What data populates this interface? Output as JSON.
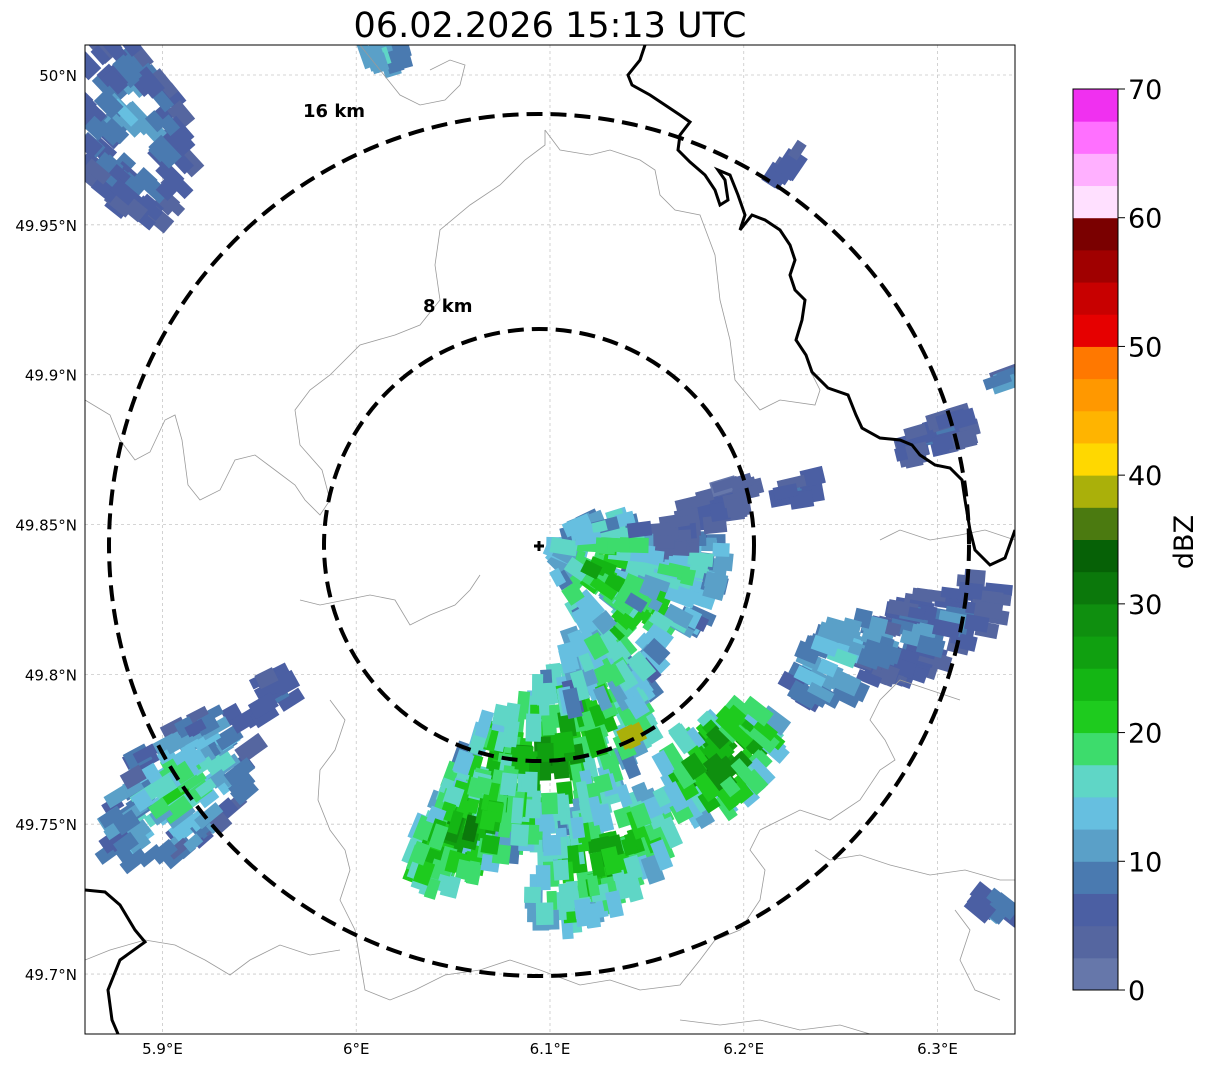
{
  "title": "06.02.2026 15:13 UTC",
  "map": {
    "lon_range": [
      5.86,
      6.34
    ],
    "lat_range": [
      49.68,
      50.01
    ],
    "lon_ticks": [
      {
        "v": 5.9,
        "label": "5.9°E"
      },
      {
        "v": 6.0,
        "label": "6°E"
      },
      {
        "v": 6.1,
        "label": "6.1°E"
      },
      {
        "v": 6.2,
        "label": "6.2°E"
      },
      {
        "v": 6.3,
        "label": "6.3°E"
      }
    ],
    "lat_ticks": [
      {
        "v": 49.7,
        "label": "49.7°N"
      },
      {
        "v": 49.75,
        "label": "49.75°N"
      },
      {
        "v": 49.8,
        "label": "49.8°N"
      },
      {
        "v": 49.85,
        "label": "49.85°N"
      },
      {
        "v": 49.9,
        "label": "49.9°N"
      },
      {
        "v": 49.95,
        "label": "49.95°N"
      },
      {
        "v": 50.0,
        "label": "50°N"
      }
    ],
    "gridlines": true,
    "radar_site": {
      "lon": 6.094,
      "lat": 49.844
    },
    "range_rings": [
      {
        "km": 8,
        "label": "8 km"
      },
      {
        "km": 16,
        "label": "16 km"
      }
    ]
  },
  "colorbar": {
    "label": "dBZ",
    "min": 0,
    "max": 70,
    "ticks": [
      0,
      10,
      20,
      30,
      40,
      50,
      60,
      70
    ],
    "colors": [
      "#6677aa",
      "#5566a0",
      "#4b5fa3",
      "#4a7ab0",
      "#5aa0c8",
      "#66bfe0",
      "#5fd6c6",
      "#3ddc6c",
      "#1ecb1e",
      "#14b614",
      "#10a010",
      "#0f8f0f",
      "#0b780b",
      "#066106",
      "#4b7a10",
      "#aab00a",
      "#ffd800",
      "#ffb400",
      "#ff9800",
      "#ff7800",
      "#e60000",
      "#c80000",
      "#a00000",
      "#7a0000",
      "#ffe0ff",
      "#ffb0ff",
      "#ff70ff",
      "#f030f0"
    ]
  },
  "echo_regions": [
    {
      "name": "southern band core",
      "center": [
        6.09,
        49.775
      ],
      "dbz_max": 35
    },
    {
      "name": "eastern band",
      "center": [
        6.27,
        49.81
      ],
      "dbz_max": 18
    },
    {
      "name": "western cell",
      "center": [
        5.9,
        49.76
      ],
      "dbz_max": 25
    },
    {
      "name": "northwest fragment",
      "center": [
        5.88,
        49.98
      ],
      "dbz_max": 12
    },
    {
      "name": "north-central band",
      "center": [
        6.13,
        49.84
      ],
      "dbz_max": 30
    },
    {
      "name": "southeast cell",
      "center": [
        6.19,
        49.765
      ],
      "dbz_max": 38
    }
  ]
}
